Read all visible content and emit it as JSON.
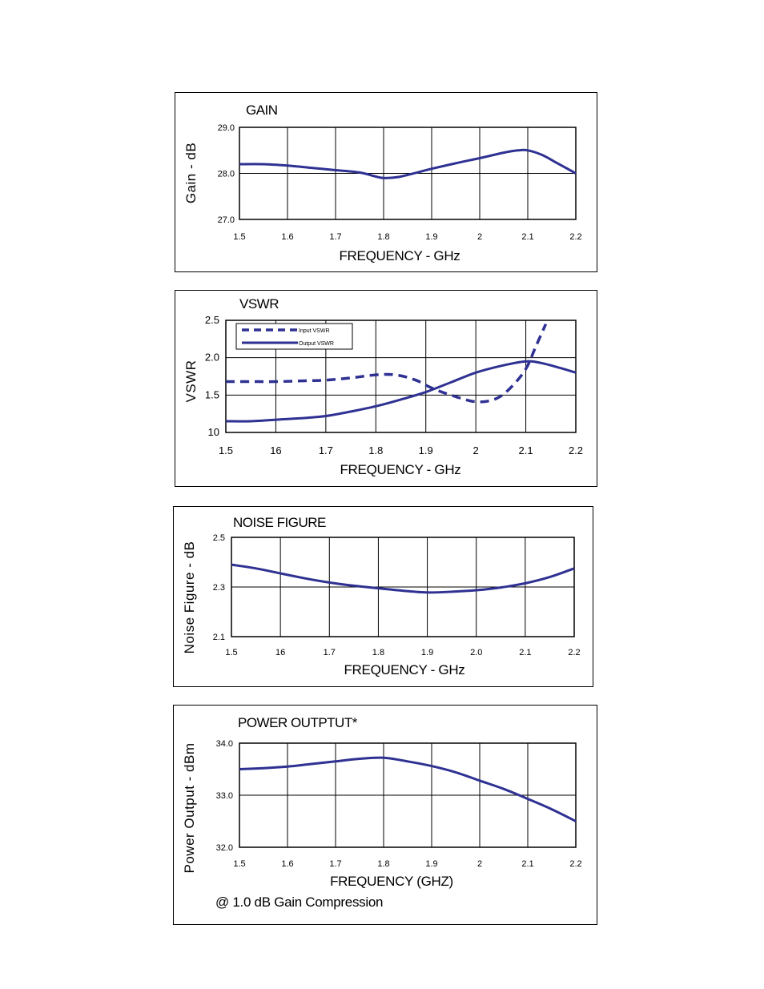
{
  "chart_data": [
    {
      "type": "line",
      "title": "GAIN",
      "xlabel": "FREQUENCY - GHz",
      "ylabel": "Gain - dB",
      "x_ticks": [
        "1.5",
        "1.6",
        "1.7",
        "1.8",
        "1.9",
        "2",
        "2.1",
        "2.2"
      ],
      "y_ticks": [
        "27.0",
        "28.0",
        "29.0"
      ],
      "xlim": [
        1.5,
        2.2
      ],
      "ylim": [
        27.0,
        29.0
      ],
      "grid": true,
      "series": [
        {
          "style": "solid",
          "color": "#2e3192",
          "x": [
            1.5,
            1.55,
            1.6,
            1.65,
            1.7,
            1.75,
            1.78,
            1.8,
            1.83,
            1.87,
            1.9,
            1.95,
            2.0,
            2.05,
            2.08,
            2.1,
            2.13,
            2.16,
            2.2
          ],
          "y": [
            28.2,
            28.2,
            28.17,
            28.12,
            28.07,
            28.02,
            27.94,
            27.9,
            27.92,
            28.02,
            28.1,
            28.22,
            28.33,
            28.45,
            28.5,
            28.5,
            28.4,
            28.23,
            28.0
          ]
        }
      ]
    },
    {
      "type": "line",
      "title": "VSWR",
      "xlabel": "FREQUENCY - GHz",
      "ylabel": "VSWR",
      "x_ticks": [
        "1.5",
        "16",
        "1.7",
        "1.8",
        "1.9",
        "2",
        "2.1",
        "2.2"
      ],
      "y_ticks": [
        "10",
        "1.5",
        "2.0",
        "2.5"
      ],
      "xlim": [
        1.5,
        2.2
      ],
      "ylim": [
        1.0,
        2.5
      ],
      "grid": true,
      "legend": "top-left",
      "series": [
        {
          "name": "Input VSWR",
          "style": "dashed",
          "color": "#2e3192",
          "x": [
            1.5,
            1.55,
            1.6,
            1.65,
            1.7,
            1.75,
            1.8,
            1.84,
            1.88,
            1.91,
            1.95,
            2.0,
            2.04,
            2.07,
            2.1,
            2.12,
            2.14
          ],
          "y": [
            1.68,
            1.68,
            1.68,
            1.69,
            1.7,
            1.73,
            1.77,
            1.77,
            1.7,
            1.6,
            1.5,
            1.41,
            1.45,
            1.6,
            1.85,
            2.15,
            2.45
          ]
        },
        {
          "name": "Output VSWR",
          "style": "solid",
          "color": "#2e3192",
          "x": [
            1.5,
            1.55,
            1.6,
            1.65,
            1.7,
            1.75,
            1.8,
            1.85,
            1.9,
            1.95,
            2.0,
            2.05,
            2.1,
            2.13,
            2.17,
            2.2
          ],
          "y": [
            1.15,
            1.15,
            1.17,
            1.19,
            1.22,
            1.28,
            1.35,
            1.44,
            1.54,
            1.67,
            1.8,
            1.89,
            1.95,
            1.93,
            1.86,
            1.8
          ]
        }
      ]
    },
    {
      "type": "line",
      "title": "NOISE FIGURE",
      "xlabel": "FREQUENCY - GHz",
      "ylabel": "Noise Figure - dB",
      "x_ticks": [
        "1.5",
        "16",
        "1.7",
        "1.8",
        "1.9",
        "2.0",
        "2.1",
        "2.2"
      ],
      "y_ticks": [
        "2.1",
        "2.3",
        "2.5"
      ],
      "xlim": [
        1.5,
        2.2
      ],
      "ylim": [
        2.1,
        2.5
      ],
      "grid": true,
      "series": [
        {
          "style": "solid",
          "color": "#2e3192",
          "x": [
            1.5,
            1.55,
            1.6,
            1.65,
            1.7,
            1.75,
            1.8,
            1.85,
            1.9,
            1.95,
            2.0,
            2.05,
            2.1,
            2.15,
            2.2
          ],
          "y": [
            2.39,
            2.375,
            2.355,
            2.335,
            2.318,
            2.305,
            2.295,
            2.285,
            2.278,
            2.281,
            2.287,
            2.298,
            2.315,
            2.34,
            2.375
          ]
        }
      ]
    },
    {
      "type": "line",
      "title": "POWER OUTPTUT*",
      "xlabel": "FREQUENCY (GHZ)",
      "ylabel": "Power Output - dBm",
      "x_ticks": [
        "1.5",
        "1.6",
        "1.7",
        "1.8",
        "1.9",
        "2",
        "2.1",
        "2.2"
      ],
      "y_ticks": [
        "32.0",
        "33.0",
        "34.0"
      ],
      "xlim": [
        1.5,
        2.2
      ],
      "ylim": [
        32.0,
        34.0
      ],
      "grid": true,
      "note": "@ 1.0 dB Gain Compression",
      "series": [
        {
          "style": "solid",
          "color": "#2e3192",
          "x": [
            1.5,
            1.55,
            1.6,
            1.65,
            1.7,
            1.75,
            1.8,
            1.85,
            1.9,
            1.95,
            2.0,
            2.05,
            2.1,
            2.15,
            2.2
          ],
          "y": [
            33.5,
            33.52,
            33.55,
            33.6,
            33.65,
            33.7,
            33.72,
            33.65,
            33.56,
            33.44,
            33.28,
            33.12,
            32.93,
            32.73,
            32.5
          ]
        }
      ]
    }
  ]
}
